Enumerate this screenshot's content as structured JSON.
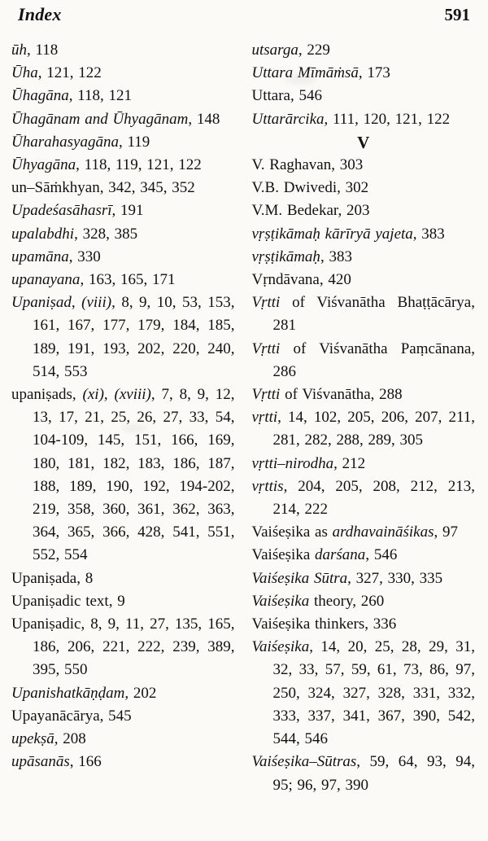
{
  "header": {
    "title": "Index",
    "page_number": "591"
  },
  "columns": {
    "left": [
      {
        "segments": [
          {
            "t": "ūh",
            "i": true
          },
          {
            "t": ", 118"
          }
        ]
      },
      {
        "segments": [
          {
            "t": "Ūha",
            "i": true
          },
          {
            "t": ", 121, 122"
          }
        ]
      },
      {
        "segments": [
          {
            "t": "Ūhagāna",
            "i": true
          },
          {
            "t": ", 118, 121"
          }
        ]
      },
      {
        "segments": [
          {
            "t": "Ūhagānam and Ūhyagānam",
            "i": true
          },
          {
            "t": ", 148"
          }
        ]
      },
      {
        "segments": [
          {
            "t": "Ūharahasyagāna",
            "i": true
          },
          {
            "t": ", 119"
          }
        ]
      },
      {
        "segments": [
          {
            "t": "Ūhyagāna",
            "i": true
          },
          {
            "t": ", 118, 119, 121, 122"
          }
        ]
      },
      {
        "segments": [
          {
            "t": "un–Sāṁkhyan, 342, 345, 352"
          }
        ]
      },
      {
        "segments": [
          {
            "t": "Upadeśasāhasrī",
            "i": true
          },
          {
            "t": ", 191"
          }
        ]
      },
      {
        "segments": [
          {
            "t": "upalabdhi",
            "i": true
          },
          {
            "t": ", 328, 385"
          }
        ]
      },
      {
        "segments": [
          {
            "t": "upamāna",
            "i": true
          },
          {
            "t": ", 330"
          }
        ]
      },
      {
        "segments": [
          {
            "t": "upanayana",
            "i": true
          },
          {
            "t": ", 163, 165, 171"
          }
        ]
      },
      {
        "segments": [
          {
            "t": "Upaniṣad",
            "i": true
          },
          {
            "t": ", "
          },
          {
            "t": "(viii)",
            "i": true
          },
          {
            "t": ", 8, 9, 10, 53, 153, 161, 167, 177, 179, 184, 185, 189, 191, 193, 202, 220, 240, 514, 553"
          }
        ]
      },
      {
        "segments": [
          {
            "t": "upaniṣads, "
          },
          {
            "t": "(xi)",
            "i": true
          },
          {
            "t": ", "
          },
          {
            "t": "(xviii)",
            "i": true
          },
          {
            "t": ", 7, 8, 9, 12, 13, 17, 21, 25, 26, 27, 33, 54, 104-109, 145, 151, 166, 169, 180, 181, 182, 183, 186, 187, 188, 189, 190, 192, 194-202, 219, 358, 360, 361, 362, 363, 364, 365, 366, 428, 541, 551, 552, 554"
          }
        ]
      },
      {
        "segments": [
          {
            "t": "Upaniṣada, 8"
          }
        ]
      },
      {
        "segments": [
          {
            "t": "Upaniṣadic text, 9"
          }
        ]
      },
      {
        "segments": [
          {
            "t": "Upaniṣadic, 8, 9, 11, 27, 135, 165, 186, 206, 221, 222, 239, 389, 395, 550"
          }
        ]
      },
      {
        "segments": [
          {
            "t": "Upanishatkāṇḍam",
            "i": true
          },
          {
            "t": ", 202"
          }
        ]
      },
      {
        "segments": [
          {
            "t": "Upayanācārya, 545"
          }
        ]
      },
      {
        "segments": [
          {
            "t": "upekṣā",
            "i": true
          },
          {
            "t": ", 208"
          }
        ]
      },
      {
        "segments": [
          {
            "t": "upāsanās",
            "i": true
          },
          {
            "t": ", 166"
          }
        ]
      }
    ],
    "right": [
      {
        "segments": [
          {
            "t": "utsarga",
            "i": true
          },
          {
            "t": ", 229"
          }
        ]
      },
      {
        "segments": [
          {
            "t": "Uttara Mīmāṁsā",
            "i": true
          },
          {
            "t": ", 173"
          }
        ]
      },
      {
        "segments": [
          {
            "t": "Uttara, 546"
          }
        ]
      },
      {
        "segments": [
          {
            "t": "Uttarārcika",
            "i": true
          },
          {
            "t": ", 111, 120, 121, 122"
          }
        ]
      },
      {
        "type": "section",
        "label": "V"
      },
      {
        "segments": [
          {
            "t": "V. Raghavan, 303"
          }
        ]
      },
      {
        "segments": [
          {
            "t": "V.B. Dwivedi, 302"
          }
        ]
      },
      {
        "segments": [
          {
            "t": "V.M. Bedekar, 203"
          }
        ]
      },
      {
        "segments": [
          {
            "t": "vṛṣṭikāmaḥ kārīryā yajeta",
            "i": true
          },
          {
            "t": ", 383"
          }
        ]
      },
      {
        "segments": [
          {
            "t": "vṛṣṭikāmaḥ",
            "i": true
          },
          {
            "t": ", 383"
          }
        ]
      },
      {
        "segments": [
          {
            "t": "Vṛndāvana, 420"
          }
        ]
      },
      {
        "segments": [
          {
            "t": "Vṛtti",
            "i": true
          },
          {
            "t": " of Viśvanātha Bhaṭṭācārya, 281"
          }
        ]
      },
      {
        "segments": [
          {
            "t": "Vṛtti",
            "i": true
          },
          {
            "t": " of Viśvanātha Paṃcānana, 286"
          }
        ]
      },
      {
        "segments": [
          {
            "t": "Vṛtti",
            "i": true
          },
          {
            "t": " of Viśvanātha, 288"
          }
        ]
      },
      {
        "segments": [
          {
            "t": "vṛtti",
            "i": true
          },
          {
            "t": ", 14, 102, 205, 206, 207, 211, 281, 282, 288, 289, 305"
          }
        ]
      },
      {
        "segments": [
          {
            "t": "vṛtti–nirodha",
            "i": true
          },
          {
            "t": ", 212"
          }
        ]
      },
      {
        "segments": [
          {
            "t": "vṛttis",
            "i": true
          },
          {
            "t": ", 204, 205, 208, 212, 213, 214, 222"
          }
        ]
      },
      {
        "segments": [
          {
            "t": "Vaiśeṣika as "
          },
          {
            "t": "ardhavaināśikas",
            "i": true
          },
          {
            "t": ", 97"
          }
        ]
      },
      {
        "segments": [
          {
            "t": "Vaiśeṣika "
          },
          {
            "t": "darśana",
            "i": true
          },
          {
            "t": ", 546"
          }
        ]
      },
      {
        "segments": [
          {
            "t": "Vaiśeṣika Sūtra",
            "i": true
          },
          {
            "t": ", 327, 330, 335"
          }
        ]
      },
      {
        "segments": [
          {
            "t": "Vaiśeṣika",
            "i": true
          },
          {
            "t": " theory, 260"
          }
        ]
      },
      {
        "segments": [
          {
            "t": "Vaiśeṣika thinkers, 336"
          }
        ]
      },
      {
        "segments": [
          {
            "t": "Vaiśeṣika",
            "i": true
          },
          {
            "t": ", 14, 20, 25, 28, 29, 31, 32, 33, 57, 59, 61, 73, 86, 97, 250, 324, 327, 328, 331, 332, 333, 337, 341, 367, 390, 542, 544, 546"
          }
        ]
      },
      {
        "segments": [
          {
            "t": "Vaiśeṣika–Sūtras",
            "i": true
          },
          {
            "t": ", 59, 64, 93, 94, 95; 96, 97, 390"
          }
        ]
      }
    ]
  }
}
